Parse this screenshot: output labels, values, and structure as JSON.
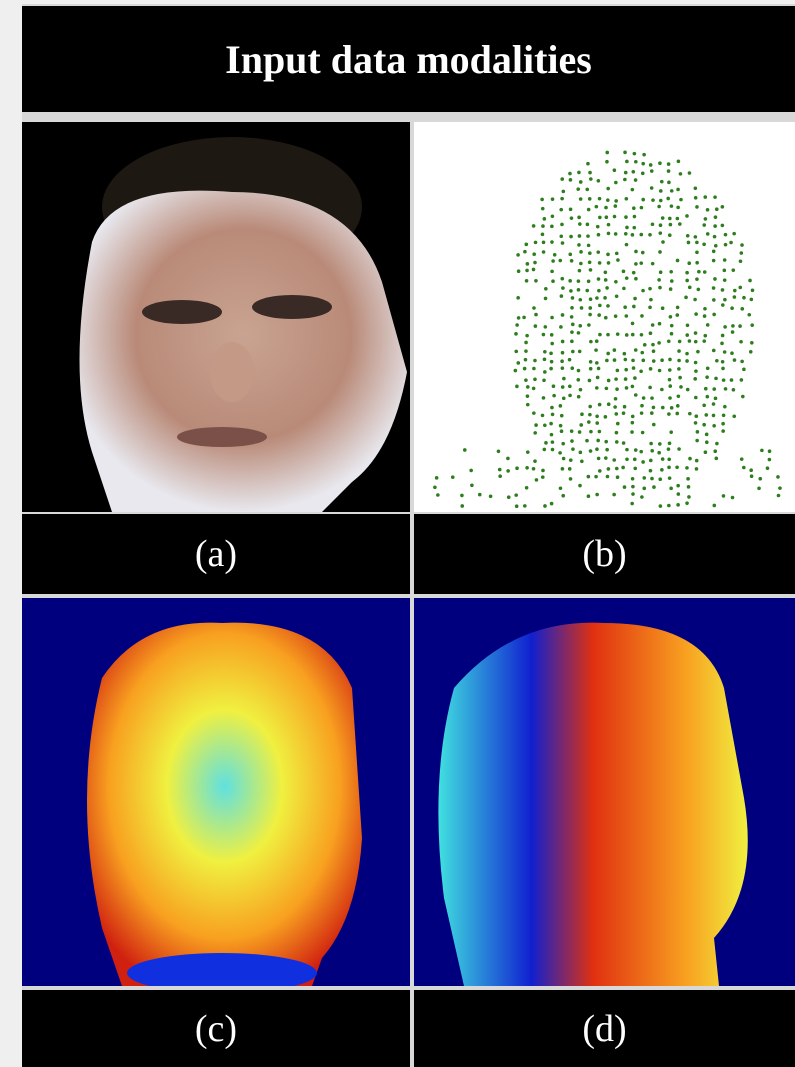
{
  "title": "Input data modalities",
  "panels": [
    {
      "label": "(a)"
    },
    {
      "label": "(b)"
    },
    {
      "label": "(c)"
    },
    {
      "label": "(d)"
    }
  ]
}
